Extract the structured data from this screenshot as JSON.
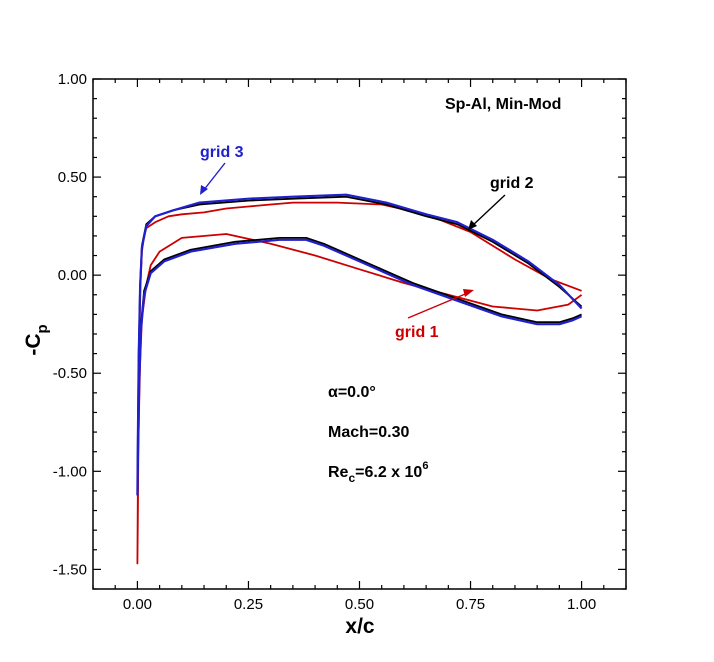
{
  "chart_data": {
    "type": "line",
    "title": "",
    "xlabel": "x/c",
    "ylabel": "-C",
    "ylabel_sub": "p",
    "xlim": [
      -0.1,
      1.1
    ],
    "ylim": [
      -1.6,
      1.0
    ],
    "x_ticks": [
      0.0,
      0.25,
      0.5,
      0.75,
      1.0
    ],
    "x_tick_labels": [
      "0.00",
      "0.25",
      "0.50",
      "0.75",
      "1.00"
    ],
    "y_ticks": [
      1.0,
      0.5,
      0.0,
      -0.5,
      -1.0,
      -1.5
    ],
    "y_tick_labels": [
      "1.00",
      "0.50",
      "0.00",
      "-0.50",
      "-1.00",
      "-1.50"
    ],
    "grid": false,
    "legend": "none",
    "series": [
      {
        "name": "grid 1",
        "color": "#cc0000",
        "x": [
          1.0,
          0.97,
          0.9,
          0.8,
          0.7,
          0.6,
          0.5,
          0.4,
          0.3,
          0.2,
          0.1,
          0.05,
          0.03,
          0.02,
          0.01,
          0.006,
          0.004,
          0.002,
          0.001,
          0.0,
          0.001,
          0.002,
          0.004,
          0.007,
          0.01,
          0.015,
          0.02,
          0.04,
          0.07,
          0.1,
          0.15,
          0.2,
          0.25,
          0.3,
          0.35,
          0.38,
          0.45,
          0.55,
          0.65,
          0.75,
          0.85,
          0.93,
          1.0
        ],
        "y": [
          -0.1,
          -0.15,
          -0.18,
          -0.16,
          -0.1,
          -0.04,
          0.03,
          0.1,
          0.16,
          0.21,
          0.19,
          0.12,
          0.05,
          -0.05,
          -0.22,
          -0.45,
          -0.65,
          -0.9,
          -1.2,
          -1.47,
          -1.05,
          -0.7,
          -0.35,
          -0.05,
          0.12,
          0.2,
          0.24,
          0.27,
          0.3,
          0.31,
          0.32,
          0.34,
          0.35,
          0.36,
          0.37,
          0.37,
          0.37,
          0.36,
          0.31,
          0.22,
          0.08,
          -0.02,
          -0.08
        ]
      },
      {
        "name": "grid 2",
        "color": "#000000",
        "x": [
          1.0,
          0.98,
          0.95,
          0.9,
          0.82,
          0.72,
          0.62,
          0.52,
          0.42,
          0.38,
          0.32,
          0.22,
          0.12,
          0.06,
          0.03,
          0.015,
          0.008,
          0.004,
          0.001,
          0.0,
          0.001,
          0.003,
          0.006,
          0.01,
          0.02,
          0.04,
          0.08,
          0.14,
          0.25,
          0.35,
          0.47,
          0.56,
          0.65,
          0.72,
          0.8,
          0.88,
          0.95,
          1.0
        ],
        "y": [
          -0.2,
          -0.22,
          -0.24,
          -0.24,
          -0.2,
          -0.12,
          -0.04,
          0.06,
          0.16,
          0.19,
          0.19,
          0.17,
          0.13,
          0.08,
          0.02,
          -0.08,
          -0.25,
          -0.5,
          -0.9,
          -1.1,
          -0.8,
          -0.4,
          -0.05,
          0.15,
          0.26,
          0.3,
          0.33,
          0.36,
          0.38,
          0.39,
          0.4,
          0.36,
          0.3,
          0.26,
          0.17,
          0.06,
          -0.06,
          -0.16
        ]
      },
      {
        "name": "grid 3",
        "color": "#2020cc",
        "x": [
          1.0,
          0.98,
          0.95,
          0.9,
          0.82,
          0.72,
          0.62,
          0.52,
          0.42,
          0.38,
          0.32,
          0.22,
          0.12,
          0.06,
          0.03,
          0.015,
          0.008,
          0.004,
          0.001,
          0.0,
          0.001,
          0.003,
          0.006,
          0.01,
          0.02,
          0.04,
          0.08,
          0.14,
          0.25,
          0.35,
          0.47,
          0.56,
          0.65,
          0.72,
          0.8,
          0.88,
          0.95,
          1.0
        ],
        "y": [
          -0.21,
          -0.23,
          -0.25,
          -0.25,
          -0.21,
          -0.13,
          -0.05,
          0.05,
          0.15,
          0.18,
          0.18,
          0.16,
          0.12,
          0.07,
          0.01,
          -0.1,
          -0.28,
          -0.55,
          -0.95,
          -1.12,
          -0.82,
          -0.42,
          -0.06,
          0.14,
          0.25,
          0.3,
          0.33,
          0.37,
          0.39,
          0.4,
          0.41,
          0.37,
          0.31,
          0.27,
          0.18,
          0.07,
          -0.05,
          -0.17
        ]
      }
    ],
    "annotations": {
      "method": "Sp-Al, Min-Mod",
      "grid1_label": "grid 1",
      "grid2_label": "grid 2",
      "grid3_label": "grid 3",
      "alpha": "α=0.0°",
      "mach": "Mach=0.30",
      "re_main": "Re",
      "re_sub": "c",
      "re_value": "=6.2 x 10",
      "re_exp": "6"
    }
  }
}
